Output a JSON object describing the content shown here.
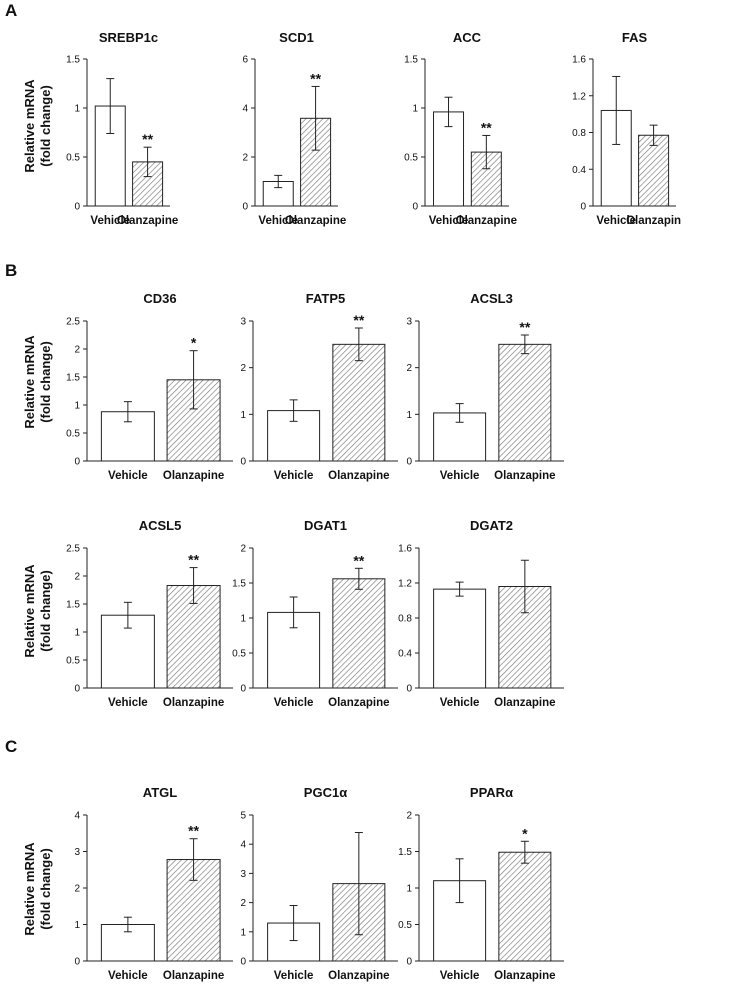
{
  "panels": [
    "A",
    "B",
    "C"
  ],
  "ylabel_line1": "Relative mRNA",
  "ylabel_line2": "(fold change)",
  "chart_data": [
    {
      "type": "bar",
      "panel": "A",
      "title": "SREBP1c",
      "categories": [
        "Vehicle",
        "Olanzapine"
      ],
      "values": [
        1.02,
        0.45
      ],
      "errors": [
        0.28,
        0.15
      ],
      "significance": [
        "",
        "**"
      ],
      "ylim": [
        0,
        1.5
      ],
      "yticks": [
        "0",
        "0.5",
        "1",
        "1.5"
      ],
      "xlabel": "",
      "ylabel": "Relative mRNA (fold change)"
    },
    {
      "type": "bar",
      "panel": "A",
      "title": "SCD1",
      "categories": [
        "Vehicle",
        "Olanzapine"
      ],
      "values": [
        1.0,
        3.58
      ],
      "errors": [
        0.25,
        1.3
      ],
      "significance": [
        "",
        "**"
      ],
      "ylim": [
        0,
        6
      ],
      "yticks": [
        "0",
        "2",
        "4",
        "6"
      ],
      "xlabel": "",
      "ylabel": ""
    },
    {
      "type": "bar",
      "panel": "A",
      "title": "ACC",
      "categories": [
        "Vehicle",
        "Olanzapine"
      ],
      "values": [
        0.96,
        0.55
      ],
      "errors": [
        0.15,
        0.17
      ],
      "significance": [
        "",
        "**"
      ],
      "ylim": [
        0,
        1.5
      ],
      "yticks": [
        "0",
        "0.5",
        "1",
        "1.5"
      ],
      "xlabel": "",
      "ylabel": ""
    },
    {
      "type": "bar",
      "panel": "A",
      "title": "FAS",
      "categories": [
        "Vehicle",
        "Olanzapin"
      ],
      "values": [
        1.04,
        0.77
      ],
      "errors": [
        0.37,
        0.11
      ],
      "significance": [
        "",
        ""
      ],
      "ylim": [
        0,
        1.6
      ],
      "yticks": [
        "0",
        "0.4",
        "0.8",
        "1.2",
        "1.6"
      ],
      "xlabel": "",
      "ylabel": ""
    },
    {
      "type": "bar",
      "panel": "B",
      "title": "CD36",
      "categories": [
        "Vehicle",
        "Olanzapine"
      ],
      "values": [
        0.88,
        1.45
      ],
      "errors": [
        0.18,
        0.52
      ],
      "significance": [
        "",
        "*"
      ],
      "ylim": [
        0,
        2.5
      ],
      "yticks": [
        "0",
        "0.5",
        "1",
        "1.5",
        "2",
        "2.5"
      ],
      "xlabel": "",
      "ylabel": "Relative mRNA (fold change)"
    },
    {
      "type": "bar",
      "panel": "B",
      "title": "FATP5",
      "categories": [
        "Vehicle",
        "Olanzapine"
      ],
      "values": [
        1.08,
        2.5
      ],
      "errors": [
        0.23,
        0.35
      ],
      "significance": [
        "",
        "**"
      ],
      "ylim": [
        0,
        3
      ],
      "yticks": [
        "0",
        "1",
        "2",
        "3"
      ],
      "xlabel": "",
      "ylabel": ""
    },
    {
      "type": "bar",
      "panel": "B",
      "title": "ACSL3",
      "categories": [
        "Vehicle",
        "Olanzapine"
      ],
      "values": [
        1.03,
        2.5
      ],
      "errors": [
        0.2,
        0.2
      ],
      "significance": [
        "",
        "**"
      ],
      "ylim": [
        0,
        3
      ],
      "yticks": [
        "0",
        "1",
        "2",
        "3"
      ],
      "xlabel": "",
      "ylabel": ""
    },
    {
      "type": "bar",
      "panel": "B",
      "title": "ACSL5",
      "categories": [
        "Vehicle",
        "Olanzapine"
      ],
      "values": [
        1.3,
        1.83
      ],
      "errors": [
        0.23,
        0.32
      ],
      "significance": [
        "",
        "**"
      ],
      "ylim": [
        0,
        2.5
      ],
      "yticks": [
        "0",
        "0.5",
        "1",
        "1.5",
        "2",
        "2.5"
      ],
      "xlabel": "",
      "ylabel": "Relative mRNA (fold change)"
    },
    {
      "type": "bar",
      "panel": "B",
      "title": "DGAT1",
      "categories": [
        "Vehicle",
        "Olanzapine"
      ],
      "values": [
        1.08,
        1.56
      ],
      "errors": [
        0.22,
        0.15
      ],
      "significance": [
        "",
        "**"
      ],
      "ylim": [
        0,
        2
      ],
      "yticks": [
        "0",
        "0.5",
        "1",
        "1.5",
        "2"
      ],
      "xlabel": "",
      "ylabel": ""
    },
    {
      "type": "bar",
      "panel": "B",
      "title": "DGAT2",
      "categories": [
        "Vehicle",
        "Olanzapine"
      ],
      "values": [
        1.13,
        1.16
      ],
      "errors": [
        0.08,
        0.3
      ],
      "significance": [
        "",
        ""
      ],
      "ylim": [
        0,
        1.6
      ],
      "yticks": [
        "0",
        "0.4",
        "0.8",
        "1.2",
        "1.6"
      ],
      "xlabel": "",
      "ylabel": ""
    },
    {
      "type": "bar",
      "panel": "C",
      "title": "ATGL",
      "categories": [
        "Vehicle",
        "Olanzapine"
      ],
      "values": [
        1.0,
        2.78
      ],
      "errors": [
        0.2,
        0.57
      ],
      "significance": [
        "",
        "**"
      ],
      "ylim": [
        0,
        4
      ],
      "yticks": [
        "0",
        "1",
        "2",
        "3",
        "4"
      ],
      "xlabel": "",
      "ylabel": "Relative mRNA (fold change)"
    },
    {
      "type": "bar",
      "panel": "C",
      "title": "PGC1α",
      "categories": [
        "Vehicle",
        "Olanzapine"
      ],
      "values": [
        1.3,
        2.65
      ],
      "errors": [
        0.6,
        1.75
      ],
      "significance": [
        "",
        ""
      ],
      "ylim": [
        0,
        5
      ],
      "yticks": [
        "0",
        "1",
        "2",
        "3",
        "4",
        "5"
      ],
      "xlabel": "",
      "ylabel": ""
    },
    {
      "type": "bar",
      "panel": "C",
      "title": "PPARα",
      "categories": [
        "Vehicle",
        "Olanzapine"
      ],
      "values": [
        1.1,
        1.49
      ],
      "errors": [
        0.3,
        0.15
      ],
      "significance": [
        "",
        "*"
      ],
      "ylim": [
        0,
        2
      ],
      "yticks": [
        "0",
        "0.5",
        "1",
        "1.5",
        "2"
      ],
      "xlabel": "",
      "ylabel": ""
    }
  ]
}
